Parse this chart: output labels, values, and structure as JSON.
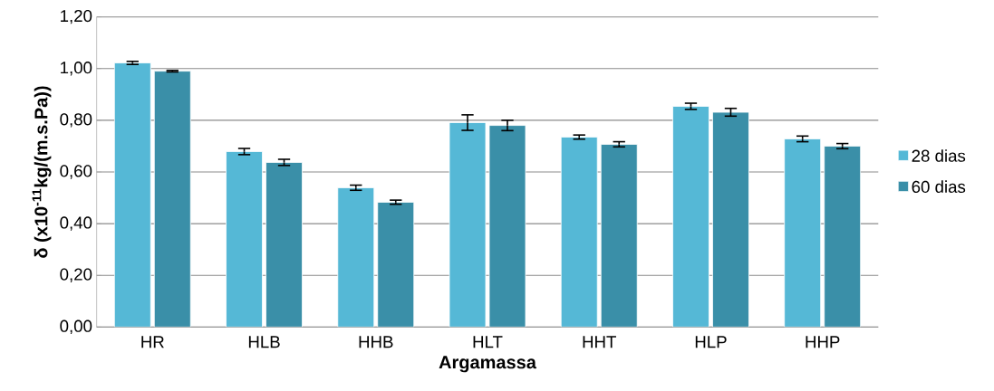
{
  "chart_data": {
    "type": "bar",
    "xlabel": "Argamassa",
    "ylabel": "δ (x10$^{-11}$kg/(m.s.Pa))",
    "categories": [
      "HR",
      "HLB",
      "HHB",
      "HLT",
      "HHT",
      "HLP",
      "HHP"
    ],
    "series": [
      {
        "name": "28 dias",
        "color": "#55b8d6",
        "values": [
          1.022,
          0.679,
          0.539,
          0.791,
          0.735,
          0.854,
          0.728
        ],
        "errors": [
          0.006,
          0.012,
          0.01,
          0.03,
          0.008,
          0.012,
          0.011
        ]
      },
      {
        "name": "60 dias",
        "color": "#3a8fa8",
        "values": [
          0.99,
          0.637,
          0.483,
          0.78,
          0.707,
          0.831,
          0.7
        ],
        "errors": [
          0.003,
          0.012,
          0.008,
          0.02,
          0.01,
          0.015,
          0.01
        ]
      }
    ],
    "ylim": [
      0,
      1.2
    ],
    "yticks": [
      {
        "value": 0,
        "label": "0,00"
      },
      {
        "value": 0.2,
        "label": "0,20"
      },
      {
        "value": 0.4,
        "label": "0,40"
      },
      {
        "value": 0.6,
        "label": "0,60"
      },
      {
        "value": 0.8,
        "label": "0,80"
      },
      {
        "value": 1.0,
        "label": "1,00"
      },
      {
        "value": 1.2,
        "label": "1,20"
      }
    ],
    "grid": "y",
    "legend": "right"
  }
}
